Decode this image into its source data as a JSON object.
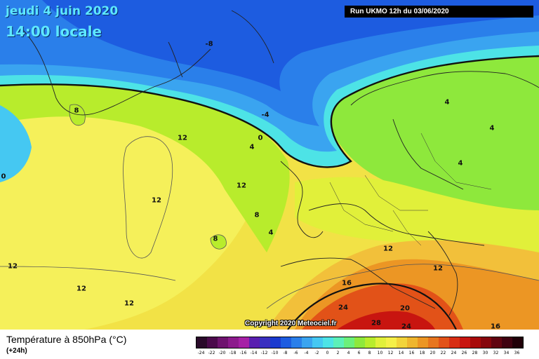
{
  "header": {
    "date": "jeudi 4 juin 2020",
    "time": "14:00 locale",
    "run": "Run UKMO 12h du 03/06/2020"
  },
  "footer": {
    "parameter": "Température à 850hPa (°C)",
    "lead": "(+24h)",
    "copyright": "Copyright 2020 Meteociel.fr"
  },
  "scale": {
    "labels": [
      "-24",
      "-22",
      "-20",
      "-18",
      "-16",
      "-14",
      "-12",
      "-10",
      "-8",
      "-6",
      "-4",
      "-2",
      "0",
      "2",
      "4",
      "6",
      "8",
      "10",
      "12",
      "14",
      "16",
      "18",
      "20",
      "22",
      "24",
      "26",
      "28",
      "30",
      "32",
      "34",
      "36"
    ],
    "colors": [
      "#2a0a2a",
      "#4b0a4b",
      "#6e136e",
      "#8c1a8c",
      "#a620a6",
      "#5a1fb0",
      "#3a2fc0",
      "#1a3acf",
      "#1d5ce0",
      "#2a7fea",
      "#3aa4f0",
      "#45c8f2",
      "#4de3e6",
      "#5cf0b8",
      "#6cf07a",
      "#8ee83c",
      "#b8ec2c",
      "#e1f03a",
      "#f5f048",
      "#f2d43a",
      "#efb62e",
      "#ec9624",
      "#e7751e",
      "#e25218",
      "#d82e14",
      "#c81510",
      "#a80a0a",
      "#86060c",
      "#600410",
      "#3f0210",
      "#200008"
    ]
  },
  "isotherms": [
    {
      "id": "minus8",
      "text": "-8"
    },
    {
      "id": "minus4",
      "text": "-4"
    },
    {
      "id": "zero",
      "text": "0"
    },
    {
      "id": "four-a",
      "text": "4"
    },
    {
      "id": "four-b",
      "text": "4"
    },
    {
      "id": "four-c",
      "text": "4"
    },
    {
      "id": "four-d",
      "text": "4"
    },
    {
      "id": "four-e",
      "text": "4"
    },
    {
      "id": "eight-a",
      "text": "8"
    },
    {
      "id": "eight-b",
      "text": "8"
    },
    {
      "id": "eight-c",
      "text": "8"
    },
    {
      "id": "twelve-a",
      "text": "12"
    },
    {
      "id": "twelve-b",
      "text": "12"
    },
    {
      "id": "twelve-c",
      "text": "12"
    },
    {
      "id": "twelve-d",
      "text": "12"
    },
    {
      "id": "twelve-e",
      "text": "12"
    },
    {
      "id": "twelve-f",
      "text": "12"
    },
    {
      "id": "twelve-g",
      "text": "12"
    },
    {
      "id": "twelve-h",
      "text": "12"
    },
    {
      "id": "sixteen-a",
      "text": "16"
    },
    {
      "id": "sixteen-b",
      "text": "16"
    },
    {
      "id": "twenty",
      "text": "20"
    },
    {
      "id": "twentyfour-a",
      "text": "24"
    },
    {
      "id": "twentyfour-b",
      "text": "24"
    },
    {
      "id": "twentyeight",
      "text": "28"
    },
    {
      "id": "zero-left",
      "text": "0"
    }
  ]
}
